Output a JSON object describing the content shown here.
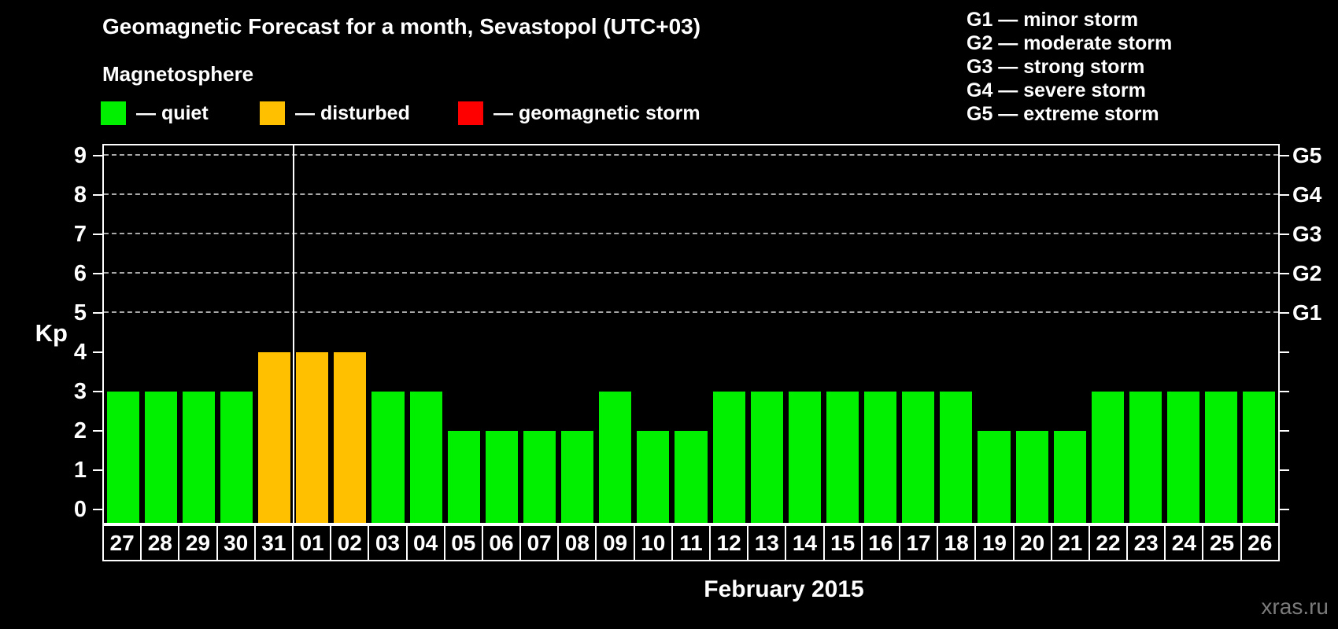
{
  "header": {
    "title": "Geomagnetic Forecast for a month, Sevastopol (UTC+03)"
  },
  "legend": {
    "title": "Magnetosphere",
    "items": [
      {
        "name": "quiet",
        "label": "— quiet",
        "color": "#00f000"
      },
      {
        "name": "disturbed",
        "label": "— disturbed",
        "color": "#ffc000"
      },
      {
        "name": "storm",
        "label": "— geomagnetic storm",
        "color": "#ff0000"
      }
    ]
  },
  "g_scale_legend": [
    "G1 — minor storm",
    "G2 — moderate storm",
    "G3 — strong storm",
    "G4 — severe storm",
    "G5 — extreme storm"
  ],
  "footer": {
    "watermark": "xras.ru"
  },
  "chart_data": {
    "type": "bar",
    "title": "Geomagnetic Forecast for a month, Sevastopol (UTC+03)",
    "ylabel": "Kp",
    "xlabel": "February 2015",
    "ylim": [
      0,
      9
    ],
    "grid": "dashed horizontal at Kp 5-9",
    "legend_position": "top",
    "categories": [
      "27",
      "28",
      "29",
      "30",
      "31",
      "01",
      "02",
      "03",
      "04",
      "05",
      "06",
      "07",
      "08",
      "09",
      "10",
      "11",
      "12",
      "13",
      "14",
      "15",
      "16",
      "17",
      "18",
      "19",
      "20",
      "21",
      "22",
      "23",
      "24",
      "25",
      "26"
    ],
    "values": [
      3,
      3,
      3,
      3,
      4,
      4,
      4,
      3,
      3,
      2,
      2,
      2,
      2,
      3,
      2,
      2,
      3,
      3,
      3,
      3,
      3,
      3,
      3,
      2,
      2,
      2,
      3,
      3,
      3,
      3,
      3
    ],
    "statuses": [
      "quiet",
      "quiet",
      "quiet",
      "quiet",
      "disturbed",
      "disturbed",
      "disturbed",
      "quiet",
      "quiet",
      "quiet",
      "quiet",
      "quiet",
      "quiet",
      "quiet",
      "quiet",
      "quiet",
      "quiet",
      "quiet",
      "quiet",
      "quiet",
      "quiet",
      "quiet",
      "quiet",
      "quiet",
      "quiet",
      "quiet",
      "quiet",
      "quiet",
      "quiet",
      "quiet",
      "quiet"
    ],
    "palette": {
      "quiet": "#00f000",
      "disturbed": "#ffc000",
      "storm": "#ff0000"
    },
    "y_ticks": [
      0,
      1,
      2,
      3,
      4,
      5,
      6,
      7,
      8,
      9
    ],
    "gridline_values": [
      5,
      6,
      7,
      8,
      9
    ],
    "right_axis": [
      {
        "value": 5,
        "label": "G1"
      },
      {
        "value": 6,
        "label": "G2"
      },
      {
        "value": 7,
        "label": "G3"
      },
      {
        "value": 8,
        "label": "G4"
      },
      {
        "value": 9,
        "label": "G5"
      }
    ],
    "month_boundary_index": 5
  }
}
